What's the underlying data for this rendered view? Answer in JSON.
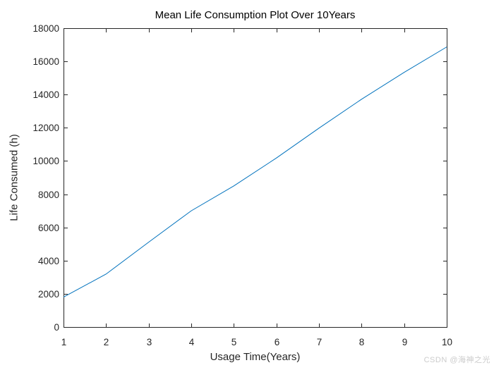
{
  "figure": {
    "background": "#ffffff",
    "watermark": "CSDN @海神之光",
    "watermark_color": "#cccccc"
  },
  "chart_data": {
    "type": "line",
    "title": "Mean Life Consumption Plot Over 10Years",
    "xlabel": "Usage Time(Years)",
    "ylabel": "Life Consumed (h)",
    "x": [
      1,
      2,
      3,
      4,
      5,
      6,
      7,
      8,
      9,
      10
    ],
    "y": [
      1800,
      3190,
      5110,
      7000,
      8500,
      10180,
      11980,
      13720,
      15340,
      16870
    ],
    "xlim": [
      1,
      10
    ],
    "ylim": [
      0,
      18000
    ],
    "xticks": [
      1,
      2,
      3,
      4,
      5,
      6,
      7,
      8,
      9,
      10
    ],
    "yticks": [
      0,
      2000,
      4000,
      6000,
      8000,
      10000,
      12000,
      14000,
      16000,
      18000
    ],
    "grid": false,
    "box": true,
    "tick_direction": "in",
    "line_color": "#0072BD",
    "axis_color": "#262626",
    "tick_label_color": "#262626"
  }
}
